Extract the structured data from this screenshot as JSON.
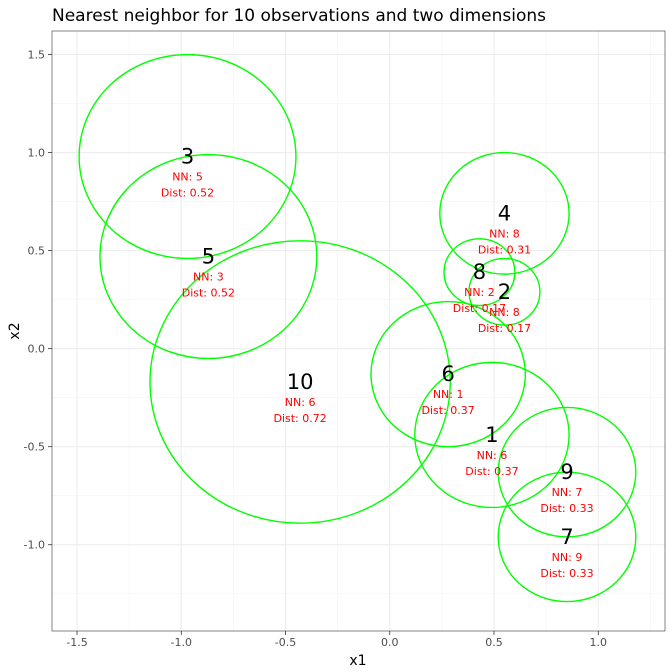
{
  "chart_data": {
    "type": "scatter",
    "title": "Nearest neighbor for 10 observations and two dimensions",
    "xlabel": "x1",
    "ylabel": "x2",
    "xlim": [
      -1.62,
      1.32
    ],
    "ylim": [
      -1.44,
      1.62
    ],
    "x_ticks": [
      -1.5,
      -1.0,
      -0.5,
      0.0,
      0.5,
      1.0
    ],
    "x_tick_labels": [
      "-1.5",
      "-1.0",
      "-0.5",
      "0.0",
      "0.5",
      "1.0"
    ],
    "y_ticks": [
      -1.0,
      -0.5,
      0.0,
      0.5,
      1.0,
      1.5
    ],
    "y_tick_labels": [
      "-1.0",
      "-0.5",
      "0.0",
      "0.5",
      "1.0",
      "1.5"
    ],
    "grid": true,
    "circle_color": "#00ff00",
    "annotation_color": "#ff0000",
    "nn_prefix": "NN: ",
    "dist_prefix": "Dist: ",
    "points": [
      {
        "id": "1",
        "x": 0.49,
        "y": -0.44,
        "nn": "6",
        "dist": "0.37",
        "r": 0.37
      },
      {
        "id": "2",
        "x": 0.55,
        "y": 0.29,
        "nn": "8",
        "dist": "0.17",
        "r": 0.17
      },
      {
        "id": "3",
        "x": -0.97,
        "y": 0.98,
        "nn": "5",
        "dist": "0.52",
        "r": 0.52
      },
      {
        "id": "4",
        "x": 0.55,
        "y": 0.69,
        "nn": "8",
        "dist": "0.31",
        "r": 0.31
      },
      {
        "id": "5",
        "x": -0.87,
        "y": 0.47,
        "nn": "3",
        "dist": "0.52",
        "r": 0.52
      },
      {
        "id": "6",
        "x": 0.28,
        "y": -0.13,
        "nn": "1",
        "dist": "0.37",
        "r": 0.37
      },
      {
        "id": "7",
        "x": 0.85,
        "y": -0.96,
        "nn": "9",
        "dist": "0.33",
        "r": 0.33
      },
      {
        "id": "8",
        "x": 0.43,
        "y": 0.39,
        "nn": "2",
        "dist": "0.17",
        "r": 0.17
      },
      {
        "id": "9",
        "x": 0.85,
        "y": -0.63,
        "nn": "7",
        "dist": "0.33",
        "r": 0.33
      },
      {
        "id": "10",
        "x": -0.43,
        "y": -0.17,
        "nn": "6",
        "dist": "0.72",
        "r": 0.72
      }
    ]
  }
}
